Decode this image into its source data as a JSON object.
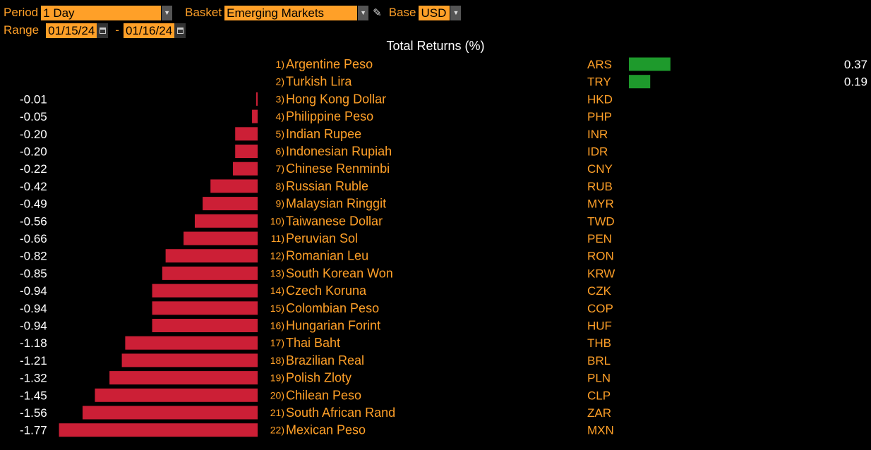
{
  "toolbar": {
    "period_label": "Period",
    "period_value": "1 Day",
    "basket_label": "Basket",
    "basket_value": "Emerging Markets",
    "base_label": "Base",
    "base_value": "USD",
    "range_label": "Range",
    "range_start": "01/15/24",
    "range_separator": "-",
    "range_end": "01/16/24"
  },
  "colors": {
    "accent": "#ffa028",
    "negative": "#cc1f36",
    "positive": "#1e9a2c",
    "background": "#000000"
  },
  "chart_data": {
    "type": "bar",
    "title": "Total Returns (%)",
    "orientation": "horizontal",
    "categories": [
      "Argentine Peso",
      "Turkish Lira",
      "Hong Kong Dollar",
      "Philippine Peso",
      "Indian Rupee",
      "Indonesian Rupiah",
      "Chinese Renminbi",
      "Russian Ruble",
      "Malaysian Ringgit",
      "Taiwanese Dollar",
      "Peruvian Sol",
      "Romanian Leu",
      "South Korean Won",
      "Czech Koruna",
      "Colombian Peso",
      "Hungarian Forint",
      "Thai Baht",
      "Brazilian Real",
      "Polish Zloty",
      "Chilean Peso",
      "South African Rand",
      "Mexican Peso"
    ],
    "ranks": [
      "1)",
      "2)",
      "3)",
      "4)",
      "5)",
      "6)",
      "7)",
      "8)",
      "9)",
      "10)",
      "11)",
      "12)",
      "13)",
      "14)",
      "15)",
      "16)",
      "17)",
      "18)",
      "19)",
      "20)",
      "21)",
      "22)"
    ],
    "codes": [
      "ARS",
      "TRY",
      "HKD",
      "PHP",
      "INR",
      "IDR",
      "CNY",
      "RUB",
      "MYR",
      "TWD",
      "PEN",
      "RON",
      "KRW",
      "CZK",
      "COP",
      "HUF",
      "THB",
      "BRL",
      "PLN",
      "CLP",
      "ZAR",
      "MXN"
    ],
    "values": [
      0.37,
      0.19,
      -0.01,
      -0.05,
      -0.2,
      -0.2,
      -0.22,
      -0.42,
      -0.49,
      -0.56,
      -0.66,
      -0.82,
      -0.85,
      -0.94,
      -0.94,
      -0.94,
      -1.18,
      -1.21,
      -1.32,
      -1.45,
      -1.56,
      -1.77
    ],
    "value_labels": [
      "0.37",
      "0.19",
      "-0.01",
      "-0.05",
      "-0.20",
      "-0.20",
      "-0.22",
      "-0.42",
      "-0.49",
      "-0.56",
      "-0.66",
      "-0.82",
      "-0.85",
      "-0.94",
      "-0.94",
      "-0.94",
      "-1.18",
      "-1.21",
      "-1.32",
      "-1.45",
      "-1.56",
      "-1.77"
    ]
  }
}
